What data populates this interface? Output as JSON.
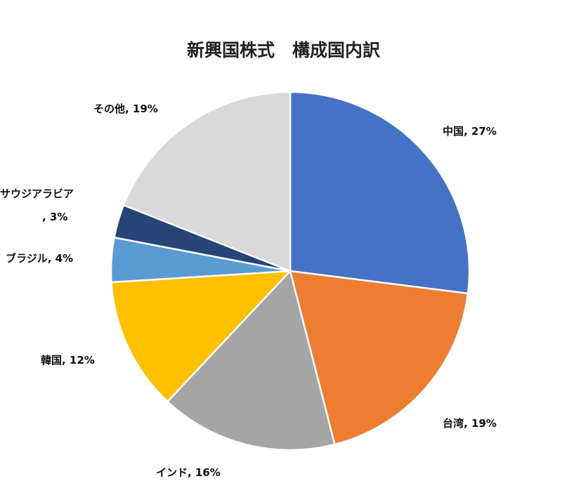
{
  "chart_data": {
    "type": "pie",
    "title": "新興国株式　構成国内訳",
    "slices": [
      {
        "label": "中国",
        "value_text": "27%",
        "value": 27,
        "color": "#4472C4"
      },
      {
        "label": "台湾",
        "value_text": "19%",
        "value": 19,
        "color": "#ED7D31"
      },
      {
        "label": "インド",
        "value_text": "16%",
        "value": 16,
        "color": "#A5A5A5"
      },
      {
        "label": "韓国",
        "value_text": "12%",
        "value": 12,
        "color": "#FFC000"
      },
      {
        "label": "ブラジル",
        "value_text": "4%",
        "value": 4,
        "color": "#5B9BD5"
      },
      {
        "label": "サウジアラビア",
        "value_text": "3%",
        "value": 3,
        "color": "#264478"
      },
      {
        "label": "その他",
        "value_text": "19%",
        "value": 19,
        "color": "#D9D9D9"
      }
    ],
    "start_angle_deg": 0,
    "direction": "clockwise",
    "legend": "none",
    "data_labels": "category, value"
  }
}
